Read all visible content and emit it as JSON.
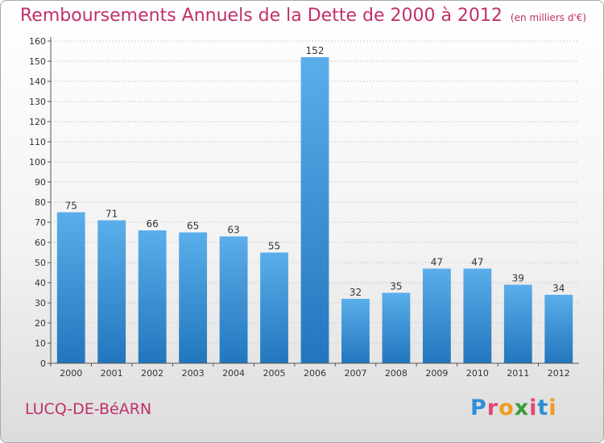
{
  "chart_data": {
    "type": "bar",
    "title": "Remboursements Annuels de la Dette de 2000 à 2012",
    "subtitle": "(en milliers d'€)",
    "categories": [
      "2000",
      "2001",
      "2002",
      "2003",
      "2004",
      "2005",
      "2006",
      "2007",
      "2008",
      "2009",
      "2010",
      "2011",
      "2012"
    ],
    "values": [
      75,
      71,
      66,
      65,
      63,
      55,
      152,
      32,
      35,
      47,
      47,
      39,
      34
    ],
    "ylim": [
      0,
      160
    ],
    "ytick_step": 10,
    "grid": true,
    "bar_color": "#3a8fd6"
  },
  "commune": "LUCQ-DE-BéARN",
  "logo": {
    "text": "Proxiti",
    "letter_colors": [
      "#2e8fd8",
      "#e8457a",
      "#f29a1f",
      "#3a9b3a",
      "#e8457a",
      "#2e8fd8",
      "#f29a1f"
    ]
  },
  "colors": {
    "title": "#c0306b",
    "grid": "#d0d0d0",
    "axis": "#555555"
  }
}
